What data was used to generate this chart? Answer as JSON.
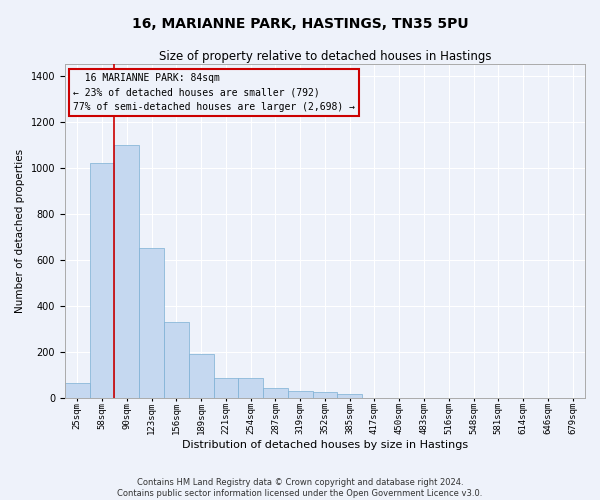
{
  "title": "16, MARIANNE PARK, HASTINGS, TN35 5PU",
  "subtitle": "Size of property relative to detached houses in Hastings",
  "xlabel": "Distribution of detached houses by size in Hastings",
  "ylabel": "Number of detached properties",
  "bar_color": "#c5d8f0",
  "bar_edge_color": "#7bafd4",
  "bar_values": [
    65,
    1020,
    1100,
    650,
    330,
    190,
    88,
    88,
    45,
    30,
    25,
    18,
    0,
    0,
    0,
    0,
    0,
    0,
    0,
    0,
    0
  ],
  "bar_labels": [
    "25sqm",
    "58sqm",
    "90sqm",
    "123sqm",
    "156sqm",
    "189sqm",
    "221sqm",
    "254sqm",
    "287sqm",
    "319sqm",
    "352sqm",
    "385sqm",
    "417sqm",
    "450sqm",
    "483sqm",
    "516sqm",
    "548sqm",
    "581sqm",
    "614sqm",
    "646sqm",
    "679sqm"
  ],
  "ylim": [
    0,
    1450
  ],
  "yticks": [
    0,
    200,
    400,
    600,
    800,
    1000,
    1200,
    1400
  ],
  "property_label": "16 MARIANNE PARK: 84sqm",
  "pct_smaller": "23% of detached houses are smaller (792)",
  "pct_larger": "77% of semi-detached houses are larger (2,698)",
  "vline_x": 1.5,
  "footer_line1": "Contains HM Land Registry data © Crown copyright and database right 2024.",
  "footer_line2": "Contains public sector information licensed under the Open Government Licence v3.0.",
  "background_color": "#eef2fa",
  "grid_color": "#ffffff",
  "annotation_border_color": "#cc0000",
  "vline_color": "#cc0000"
}
